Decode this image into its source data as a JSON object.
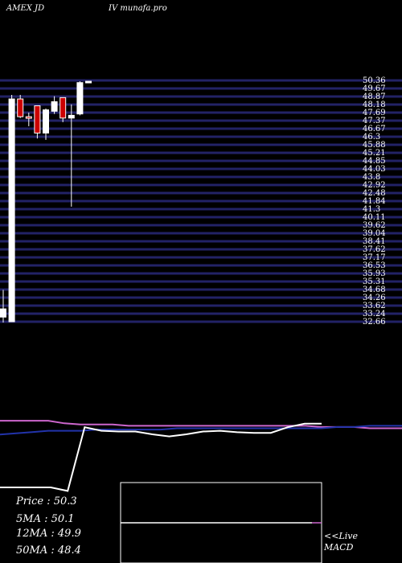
{
  "header": {
    "symbol": "AMEX  JD",
    "site": "IV munafa.pro"
  },
  "stats": [
    {
      "label": "Price",
      "value": ": 50.3"
    },
    {
      "label": "5MA",
      "value": ": 50.1"
    },
    {
      "label": "12MA",
      "value": ": 49.9"
    },
    {
      "label": "50MA",
      "value": ": 48.4"
    }
  ],
  "live_label": "<<Live",
  "macd_label": "MACD",
  "colors": {
    "background": "#000000",
    "gridline": "#222266",
    "up": "#ffffff",
    "down": "#cc0000",
    "ma_pink": "#cc66cc",
    "ma_blue": "#2233aa"
  },
  "chart_data": [
    {
      "type": "candlestick",
      "ylim": [
        32.66,
        50.36
      ],
      "y_tick_labels": [
        "50.36",
        "49.67",
        "48.87",
        "48.18",
        "47.69",
        "47.37",
        "46.67",
        "46.3",
        "45.88",
        "45.21",
        "44.85",
        "44.03",
        "43.8",
        "42.92",
        "42.48",
        "41.84",
        "41.3",
        "40.11",
        "39.62",
        "39.04",
        "38.41",
        "37.62",
        "37.17",
        "36.53",
        "35.93",
        "35.31",
        "34.68",
        "34.26",
        "33.62",
        "33.24",
        "32.66"
      ],
      "candles": [
        {
          "open": 33.0,
          "high": 35.0,
          "low": 32.6,
          "close": 33.6
        },
        {
          "open": 32.66,
          "high": 49.3,
          "low": 32.66,
          "close": 49.0
        },
        {
          "open": 49.0,
          "high": 49.3,
          "low": 47.6,
          "close": 47.7
        },
        {
          "open": 47.7,
          "high": 48.0,
          "low": 47.0,
          "close": 47.6
        },
        {
          "open": 48.5,
          "high": 48.5,
          "low": 46.1,
          "close": 46.5
        },
        {
          "open": 46.5,
          "high": 48.3,
          "low": 46.0,
          "close": 48.2
        },
        {
          "open": 48.1,
          "high": 49.2,
          "low": 47.9,
          "close": 48.8
        },
        {
          "open": 49.1,
          "high": 49.1,
          "low": 47.3,
          "close": 47.6
        },
        {
          "open": 47.6,
          "high": 48.6,
          "low": 41.1,
          "close": 47.8
        },
        {
          "open": 47.9,
          "high": 50.3,
          "low": 47.8,
          "close": 50.2
        },
        {
          "open": 50.3,
          "high": 50.3,
          "low": 50.3,
          "close": 50.3
        }
      ],
      "ma_lines": [
        {
          "name": "5MA",
          "color": "#cc66cc",
          "values": [
            49.4,
            49.4,
            49.4,
            49.4,
            49.2,
            49.1,
            49.1,
            49.1,
            49.0,
            49.0,
            49.0,
            49.0,
            49.0,
            49.0,
            49.0,
            49.0,
            49.0,
            49.0,
            49.0,
            49.0,
            48.9,
            48.9,
            48.9,
            48.8,
            48.8,
            48.8
          ]
        },
        {
          "name": "12MA",
          "color": "#2233aa",
          "values": [
            48.3,
            48.4,
            48.5,
            48.6,
            48.6,
            48.6,
            48.7,
            48.7,
            48.7,
            48.7,
            48.7,
            48.8,
            48.8,
            48.8,
            48.8,
            48.8,
            48.8,
            48.8,
            48.8,
            48.8,
            48.8,
            48.9,
            48.9,
            49.0,
            49.0,
            49.0
          ]
        }
      ]
    },
    {
      "type": "line",
      "name": "MACD",
      "series": [
        {
          "values": [
            0.0,
            0.0,
            0.0,
            0.0,
            -0.5,
            8.5,
            8.0,
            7.9,
            7.9,
            7.5,
            7.2,
            7.5,
            7.9,
            8.0,
            7.8,
            7.7,
            7.7,
            8.5,
            9.0,
            9.0
          ]
        }
      ]
    }
  ]
}
